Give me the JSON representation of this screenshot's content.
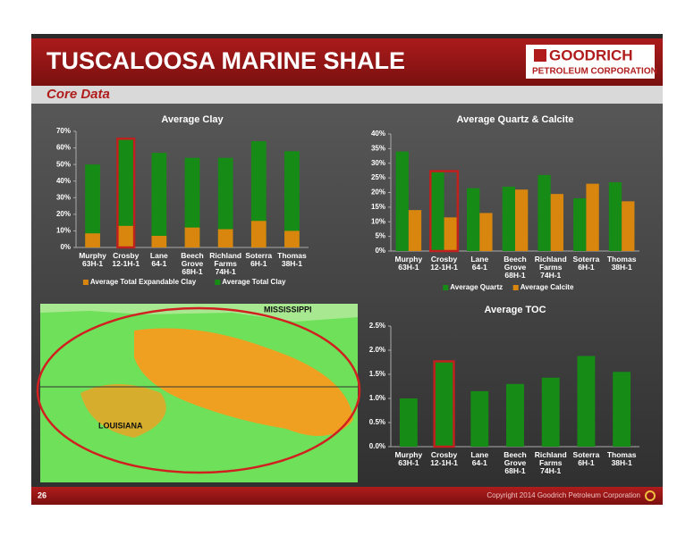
{
  "header": {
    "title": "TUSCALOOSA MARINE SHALE",
    "subtitle": "Core Data",
    "logo": "GOODRICH",
    "logo_sub": "PETROLEUM CORPORATION"
  },
  "footer": {
    "page": "26",
    "copyright": "Copyright 2014 Goodrich Petroleum Corporation"
  },
  "map": {
    "labels": [
      "MISSISSIPPI",
      "LOUISIANA"
    ]
  },
  "chart_data": [
    {
      "type": "bar",
      "barmode": "overlay",
      "title": "Average Clay",
      "categories": [
        "Murphy\n63H-1",
        "Crosby\n12-1H-1",
        "Lane\n64-1",
        "Beech\nGrove\n68H-1",
        "Richland\nFarms\n74H-1",
        "Soterra\n6H-1",
        "Thomas\n38H-1"
      ],
      "series": [
        {
          "name": "Average Total Expandable Clay",
          "color": "#d9860f",
          "values": [
            8.5,
            13,
            7,
            12,
            11,
            16,
            10
          ]
        },
        {
          "name": "Average Total Clay",
          "color": "#168c16",
          "values": [
            50,
            65,
            57,
            54,
            54,
            64,
            58
          ]
        }
      ],
      "ylim": [
        0,
        70
      ],
      "yticks": [
        {
          "value": 0,
          "label": "0%"
        },
        {
          "value": 10,
          "label": "10%"
        },
        {
          "value": 20,
          "label": "20%"
        },
        {
          "value": 30,
          "label": "30%"
        },
        {
          "value": 40,
          "label": "40%"
        },
        {
          "value": 50,
          "label": "50%"
        },
        {
          "value": 60,
          "label": "60%"
        },
        {
          "value": 70,
          "label": "70%"
        }
      ],
      "highlight": 1,
      "highlight_color": "#c0201e",
      "legend": "bottom"
    },
    {
      "type": "bar",
      "barmode": "group",
      "title": "Average  Quartz & Calcite",
      "categories": [
        "Murphy\n63H-1",
        "Crosby\n12-1H-1",
        "Lane\n64-1",
        "Beech\nGrove\n68H-1",
        "Richland\nFarms\n74H-1",
        "Soterra\n6H-1",
        "Thomas\n38H-1"
      ],
      "series": [
        {
          "name": "Average Quartz",
          "color": "#168c16",
          "values": [
            34,
            27,
            21.5,
            22,
            26,
            18,
            23.5
          ]
        },
        {
          "name": "Average Calcite",
          "color": "#d9860f",
          "values": [
            14,
            11.5,
            13,
            21,
            19.5,
            23,
            17
          ]
        }
      ],
      "ylim": [
        0,
        40
      ],
      "yticks": [
        {
          "value": 0,
          "label": "0%"
        },
        {
          "value": 5,
          "label": "5%"
        },
        {
          "value": 10,
          "label": "10%"
        },
        {
          "value": 15,
          "label": "15%"
        },
        {
          "value": 20,
          "label": "20%"
        },
        {
          "value": 25,
          "label": "25%"
        },
        {
          "value": 30,
          "label": "30%"
        },
        {
          "value": 35,
          "label": "35%"
        },
        {
          "value": 40,
          "label": "40%"
        }
      ],
      "highlight": 1,
      "highlight_color": "#c0201e",
      "legend": "bottom"
    },
    {
      "type": "bar",
      "barmode": "group",
      "title": "Average TOC",
      "categories": [
        "Murphy\n63H-1",
        "Crosby\n12-1H-1",
        "Lane\n64-1",
        "Beech\nGrove\n68H-1",
        "Richland\nFarms\n74H-1",
        "Soterra\n6H-1",
        "Thomas\n38H-1"
      ],
      "values": [
        1.0,
        1.75,
        1.15,
        1.3,
        1.43,
        1.88,
        1.55
      ],
      "color": "#168c16",
      "ylim": [
        0,
        2.5
      ],
      "yticks": [
        {
          "value": 0,
          "label": "0.0%"
        },
        {
          "value": 0.5,
          "label": "0.5%"
        },
        {
          "value": 1,
          "label": "1.0%"
        },
        {
          "value": 1.5,
          "label": "1.5%"
        },
        {
          "value": 2,
          "label": "2.0%"
        },
        {
          "value": 2.5,
          "label": "2.5%"
        }
      ],
      "highlight": 1,
      "highlight_color": "#c0201e"
    }
  ]
}
